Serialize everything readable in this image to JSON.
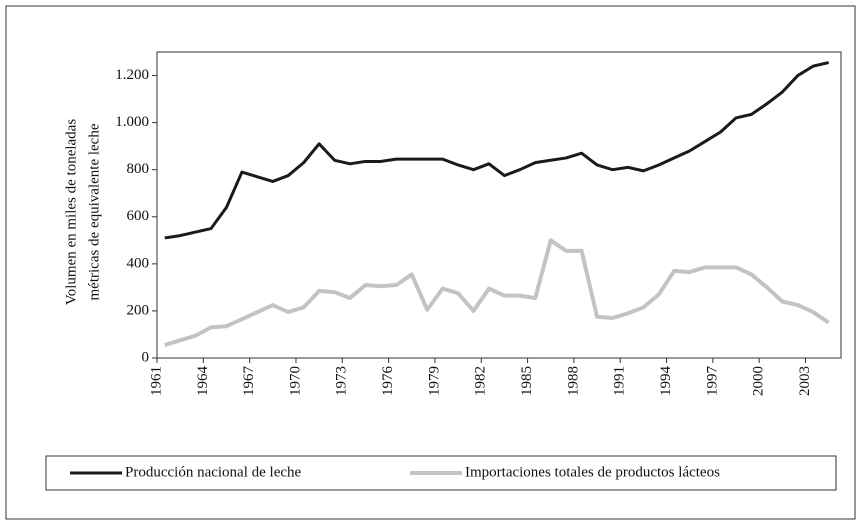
{
  "chart_data": {
    "type": "line",
    "y_label": [
      "Volumen en miles de toneladas",
      "métricas de equivalente leche"
    ],
    "x": [
      1961.5,
      1962.5,
      1963.5,
      1964.5,
      1965.5,
      1966.5,
      1967.5,
      1968.5,
      1969.5,
      1970.5,
      1971.5,
      1972.5,
      1973.5,
      1974.5,
      1975.5,
      1976.5,
      1977.5,
      1978.5,
      1979.5,
      1980.5,
      1981.5,
      1982.5,
      1983.5,
      1984.5,
      1985.5,
      1986.5,
      1987.5,
      1988.5,
      1989.5,
      1990.5,
      1991.5,
      1992.5,
      1993.5,
      1994.5,
      1995.5,
      1996.5,
      1997.5,
      1998.5,
      1999.5,
      2000.5,
      2001.5,
      2002.5,
      2003.5,
      2004.5
    ],
    "series": [
      {
        "name": "Producción nacional de leche",
        "color": "#1a1a1a",
        "values": [
          510,
          520,
          535,
          550,
          640,
          790,
          770,
          750,
          775,
          830,
          910,
          840,
          825,
          835,
          835,
          845,
          845,
          845,
          845,
          820,
          800,
          825,
          775,
          800,
          830,
          840,
          850,
          870,
          820,
          800,
          810,
          795,
          820,
          850,
          880,
          920,
          960,
          1020,
          1035,
          1080,
          1130,
          1200,
          1240,
          1255
        ]
      },
      {
        "name": "Importaciones totales de productos lácteos",
        "color": "#c0c4c6",
        "values": [
          55,
          75,
          95,
          130,
          135,
          165,
          195,
          225,
          195,
          215,
          285,
          280,
          255,
          310,
          305,
          310,
          355,
          205,
          295,
          275,
          200,
          295,
          265,
          265,
          255,
          500,
          455,
          455,
          175,
          170,
          190,
          215,
          270,
          370,
          365,
          385,
          385,
          385,
          355,
          300,
          240,
          225,
          195,
          150
        ]
      }
    ],
    "xlim": [
      1961,
      2005.3
    ],
    "xticks": [
      1961,
      1964,
      1967,
      1970,
      1973,
      1976,
      1979,
      1982,
      1985,
      1988,
      1991,
      1994,
      1997,
      2000,
      2003
    ],
    "ylim": [
      0,
      1300
    ],
    "yticks": [
      0,
      200,
      400,
      600,
      800,
      {
        "value": 1000,
        "label": "1.000"
      },
      {
        "value": 1200,
        "label": "1.200"
      }
    ],
    "legend": "bottom"
  }
}
